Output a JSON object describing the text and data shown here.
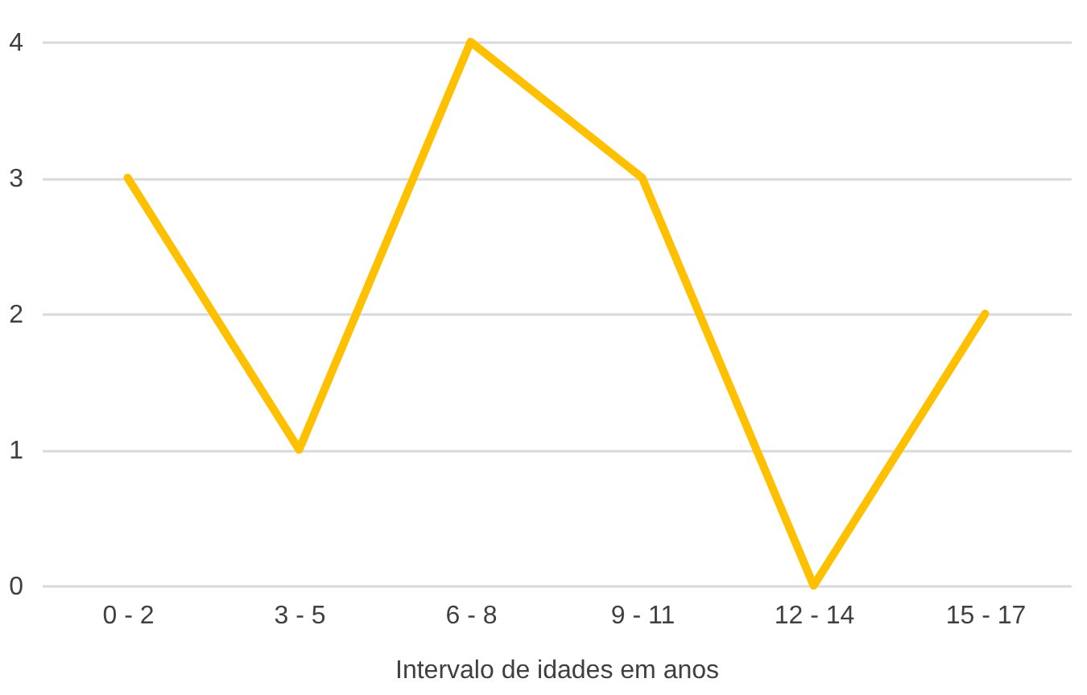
{
  "chart_data": {
    "type": "line",
    "xlabel": "Intervalo de idades em anos",
    "categories": [
      "0 - 2",
      "3 - 5",
      "6 - 8",
      "9 - 11",
      "12 - 14",
      "15 - 17"
    ],
    "series": [
      {
        "color": "#ffc000",
        "values": [
          3,
          1,
          4,
          3,
          0,
          2
        ]
      }
    ],
    "ylim": [
      0,
      4
    ],
    "yticks": [
      0,
      1,
      2,
      3,
      4
    ],
    "grid": "y",
    "marker": "none",
    "line_style": "solid"
  }
}
